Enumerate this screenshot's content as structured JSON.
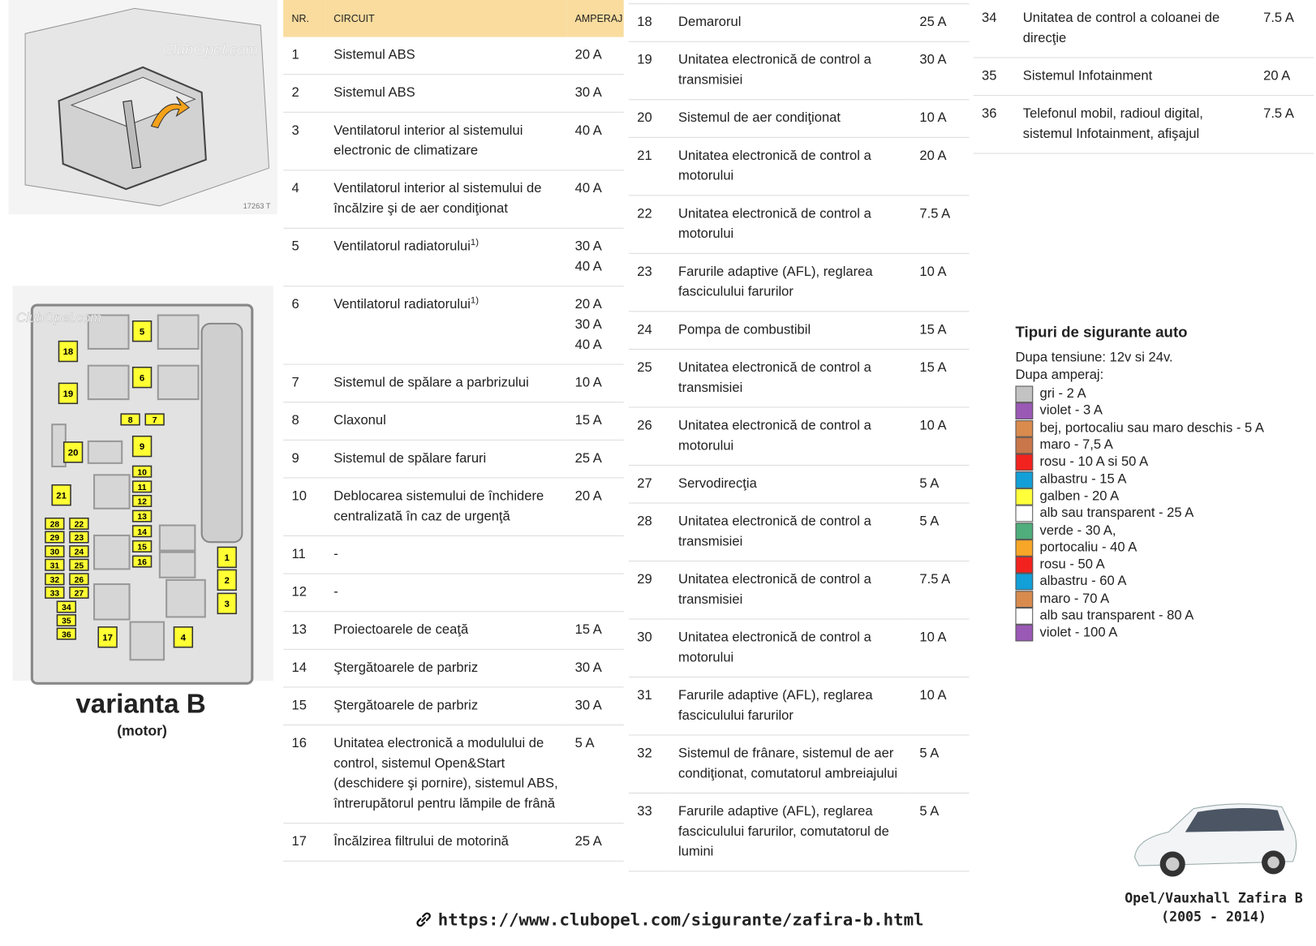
{
  "image": {
    "watermark": "ClubOpel.com",
    "code": "17263 T"
  },
  "diagram": {
    "watermark": "ClubOpel.com",
    "fuses": [
      "5",
      "18",
      "6",
      "19",
      "8",
      "7",
      "9",
      "20",
      "10",
      "11",
      "12",
      "13",
      "21",
      "14",
      "15",
      "16",
      "22",
      "28",
      "29",
      "23",
      "30",
      "24",
      "31",
      "25",
      "32",
      "26",
      "33",
      "27",
      "34",
      "35",
      "36",
      "17",
      "4",
      "1",
      "2",
      "3"
    ],
    "title": "varianta B",
    "subtitle": "(motor)"
  },
  "tables": [
    {
      "header": [
        "NR.",
        "CIRCUIT",
        "AMPERAJ"
      ],
      "rows": [
        {
          "nr": "1",
          "circuit": "Sistemul ABS",
          "amp": [
            "20 A"
          ]
        },
        {
          "nr": "2",
          "circuit": "Sistemul ABS",
          "amp": [
            "30 A"
          ]
        },
        {
          "nr": "3",
          "circuit": "Ventilatorul interior al sistemului electronic de climatizare",
          "amp": [
            "40 A"
          ]
        },
        {
          "nr": "4",
          "circuit": "Ventilatorul interior al sistemului de încălzire şi de aer condiţionat",
          "amp": [
            "40 A"
          ]
        },
        {
          "nr": "5",
          "circuit": "Ventilatorul radiatorului",
          "note": "1)",
          "amp": [
            "30 A",
            "40 A"
          ]
        },
        {
          "nr": "6",
          "circuit": "Ventilatorul radiatorului",
          "note": "1)",
          "amp": [
            "20 A",
            "30 A",
            "40 A"
          ]
        },
        {
          "nr": "7",
          "circuit": "Sistemul de spălare a parbrizului",
          "amp": [
            "10 A"
          ]
        },
        {
          "nr": "8",
          "circuit": "Claxonul",
          "amp": [
            "15 A"
          ]
        },
        {
          "nr": "9",
          "circuit": "Sistemul de spălare faruri",
          "amp": [
            "25 A"
          ]
        },
        {
          "nr": "10",
          "circuit": "Deblocarea sistemului de închidere centralizată în caz de urgenţă",
          "amp": [
            "20 A"
          ]
        },
        {
          "nr": "11",
          "circuit": "-",
          "amp": []
        },
        {
          "nr": "12",
          "circuit": "-",
          "amp": []
        },
        {
          "nr": "13",
          "circuit": "Proiectoarele de ceaţă",
          "amp": [
            "15 A"
          ]
        },
        {
          "nr": "14",
          "circuit": "Ştergătoarele de parbriz",
          "amp": [
            "30 A"
          ]
        },
        {
          "nr": "15",
          "circuit": "Ştergătoarele de parbriz",
          "amp": [
            "30 A"
          ]
        },
        {
          "nr": "16",
          "circuit": "Unitatea electronică a modulului de control, sistemul Open&Start (deschidere şi pornire), sistemul ABS, întrerupătorul pentru lămpile de frână",
          "amp": [
            "5 A"
          ]
        },
        {
          "nr": "17",
          "circuit": "Încălzirea filtrului de motorină",
          "amp": [
            "25 A"
          ]
        }
      ]
    },
    {
      "rows": [
        {
          "nr": "18",
          "circuit": "Demarorul",
          "amp": [
            "25 A"
          ]
        },
        {
          "nr": "19",
          "circuit": "Unitatea electronică de control a transmisiei",
          "amp": [
            "30 A"
          ]
        },
        {
          "nr": "20",
          "circuit": "Sistemul de aer condiţionat",
          "amp": [
            "10 A"
          ]
        },
        {
          "nr": "21",
          "circuit": "Unitatea electronică de control a motorului",
          "amp": [
            "20 A"
          ]
        },
        {
          "nr": "22",
          "circuit": "Unitatea electronică de control a motorului",
          "amp": [
            "7.5 A"
          ]
        },
        {
          "nr": "23",
          "circuit": "Farurile adaptive (AFL), reglarea fasciculului farurilor",
          "amp": [
            "10 A"
          ]
        },
        {
          "nr": "24",
          "circuit": "Pompa de combustibil",
          "amp": [
            "15 A"
          ]
        },
        {
          "nr": "25",
          "circuit": "Unitatea electronică de control a transmisiei",
          "amp": [
            "15 A"
          ]
        },
        {
          "nr": "26",
          "circuit": "Unitatea electronică de control a motorului",
          "amp": [
            "10 A"
          ]
        },
        {
          "nr": "27",
          "circuit": "Servodirecţia",
          "amp": [
            "5 A"
          ]
        },
        {
          "nr": "28",
          "circuit": "Unitatea electronică de control a transmisiei",
          "amp": [
            "5 A"
          ]
        },
        {
          "nr": "29",
          "circuit": "Unitatea electronică de control a transmisiei",
          "amp": [
            "7.5 A"
          ]
        },
        {
          "nr": "30",
          "circuit": "Unitatea electronică de control a motorului",
          "amp": [
            "10 A"
          ]
        },
        {
          "nr": "31",
          "circuit": "Farurile adaptive (AFL), reglarea fasciculului farurilor",
          "amp": [
            "10 A"
          ]
        },
        {
          "nr": "32",
          "circuit": "Sistemul de frânare, sistemul de aer condiţionat, comutatorul ambreiajului",
          "amp": [
            "5 A"
          ]
        },
        {
          "nr": "33",
          "circuit": "Farurile adaptive (AFL), reglarea fasciculului farurilor, comutatorul de lumini",
          "amp": [
            "5 A"
          ]
        }
      ]
    },
    {
      "rows": [
        {
          "nr": "34",
          "circuit": "Unitatea de control a coloanei de direcţie",
          "amp": [
            "7.5 A"
          ]
        },
        {
          "nr": "35",
          "circuit": "Sistemul Infotainment",
          "amp": [
            "20 A"
          ]
        },
        {
          "nr": "36",
          "circuit": "Telefonul mobil, radioul digital, sistemul Infotainment, afişajul",
          "amp": [
            "7.5 A"
          ]
        }
      ]
    }
  ],
  "legend": {
    "title": "Tipuri de sigurante auto",
    "voltage": "Dupa tensiune: 12v si 24v.",
    "amperage": "Dupa amperaj:",
    "items": [
      {
        "label": "gri - 2 A",
        "color": "#c3c3c3"
      },
      {
        "label": "violet - 3 A",
        "color": "#9b59b6"
      },
      {
        "label": "bej, portocaliu sau maro deschis - 5 A",
        "color": "#d98b4e"
      },
      {
        "label": "maro - 7,5 A",
        "color": "#c9764a"
      },
      {
        "label": "rosu - 10 A si 50 A",
        "color": "#f2231f"
      },
      {
        "label": "albastru - 15 A",
        "color": "#139fd8"
      },
      {
        "label": "galben - 20 A",
        "color": "#ffff3a"
      },
      {
        "label": "alb sau transparent - 25 A",
        "color": "#ffffff"
      },
      {
        "label": "verde - 30 A,",
        "color": "#4fae7c"
      },
      {
        "label": "portocaliu - 40 A",
        "color": "#f7a627"
      },
      {
        "label": "rosu - 50 A",
        "color": "#f2231f"
      },
      {
        "label": "albastru - 60 A",
        "color": "#139fd8"
      },
      {
        "label": "maro - 70 A",
        "color": "#d98b4e"
      },
      {
        "label": "alb sau transparent - 80 A",
        "color": "#ffffff"
      },
      {
        "label": "violet - 100 A",
        "color": "#9b59b6"
      }
    ]
  },
  "car": {
    "model": "Opel/Vauxhall Zafira B",
    "years": "(2005 - 2014)"
  },
  "url": "https://www.clubopel.com/sigurante/zafira-b.html"
}
